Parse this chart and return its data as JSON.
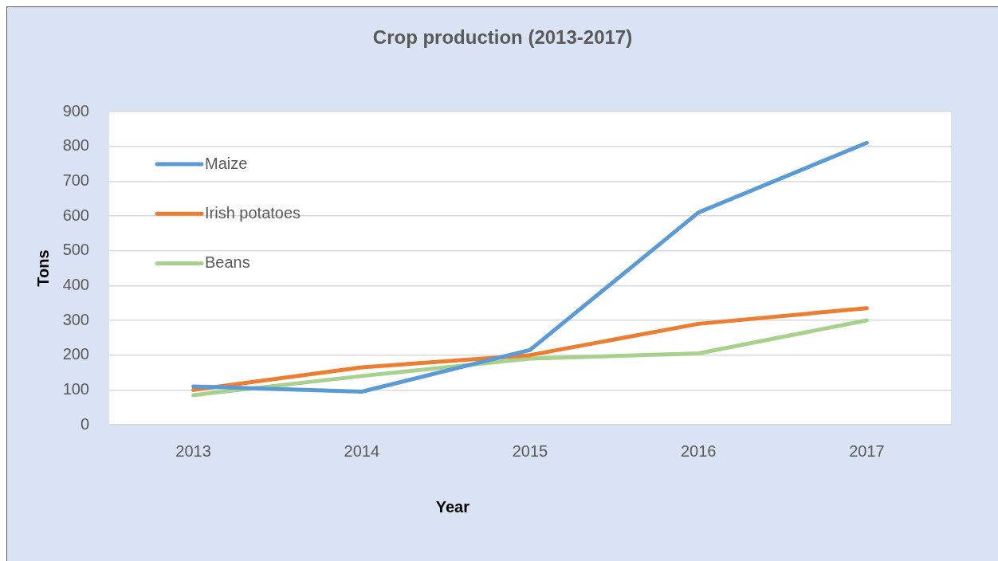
{
  "chart_data": {
    "type": "line",
    "title": "Crop production (2013-2017)",
    "xlabel": "Year",
    "ylabel": "Tons",
    "categories": [
      "2013",
      "2014",
      "2015",
      "2016",
      "2017"
    ],
    "series": [
      {
        "name": "Maize",
        "color": "#5b9bd5",
        "values": [
          110,
          95,
          215,
          610,
          810
        ]
      },
      {
        "name": "Irish potatoes",
        "color": "#ed7d31",
        "values": [
          100,
          165,
          200,
          290,
          335
        ]
      },
      {
        "name": "Beans",
        "color": "#a9d18e",
        "values": [
          85,
          140,
          190,
          205,
          300
        ]
      }
    ],
    "ylim": [
      0,
      900
    ],
    "yticks": [
      0,
      100,
      200,
      300,
      400,
      500,
      600,
      700,
      800,
      900
    ],
    "grid": "y",
    "legend": "top left"
  }
}
